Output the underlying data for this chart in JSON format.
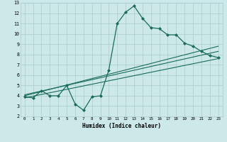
{
  "title": "",
  "xlabel": "Humidex (Indice chaleur)",
  "bg_color": "#cce8e8",
  "grid_color": "#aacccc",
  "line_color": "#1a6b5a",
  "line1_x": [
    0,
    1,
    2,
    3,
    4,
    5,
    6,
    7,
    8,
    9,
    10,
    11,
    12,
    13,
    14,
    15,
    16,
    17,
    18,
    19,
    20,
    21,
    22,
    23
  ],
  "line1_y": [
    3.9,
    3.8,
    4.5,
    4.0,
    4.0,
    5.0,
    3.2,
    2.6,
    3.9,
    4.0,
    6.5,
    11.0,
    12.1,
    12.7,
    11.5,
    10.6,
    10.5,
    9.9,
    9.9,
    9.1,
    8.8,
    8.3,
    7.9,
    7.7
  ],
  "line2_x": [
    0,
    23
  ],
  "line2_y": [
    4.0,
    8.8
  ],
  "line3_x": [
    0,
    23
  ],
  "line3_y": [
    4.1,
    8.3
  ],
  "line4_x": [
    0,
    23
  ],
  "line4_y": [
    3.8,
    7.6
  ],
  "xlim": [
    -0.5,
    23.5
  ],
  "ylim": [
    2,
    13
  ],
  "xticks": [
    0,
    1,
    2,
    3,
    4,
    5,
    6,
    7,
    8,
    9,
    10,
    11,
    12,
    13,
    14,
    15,
    16,
    17,
    18,
    19,
    20,
    21,
    22,
    23
  ],
  "yticks": [
    2,
    3,
    4,
    5,
    6,
    7,
    8,
    9,
    10,
    11,
    12,
    13
  ]
}
